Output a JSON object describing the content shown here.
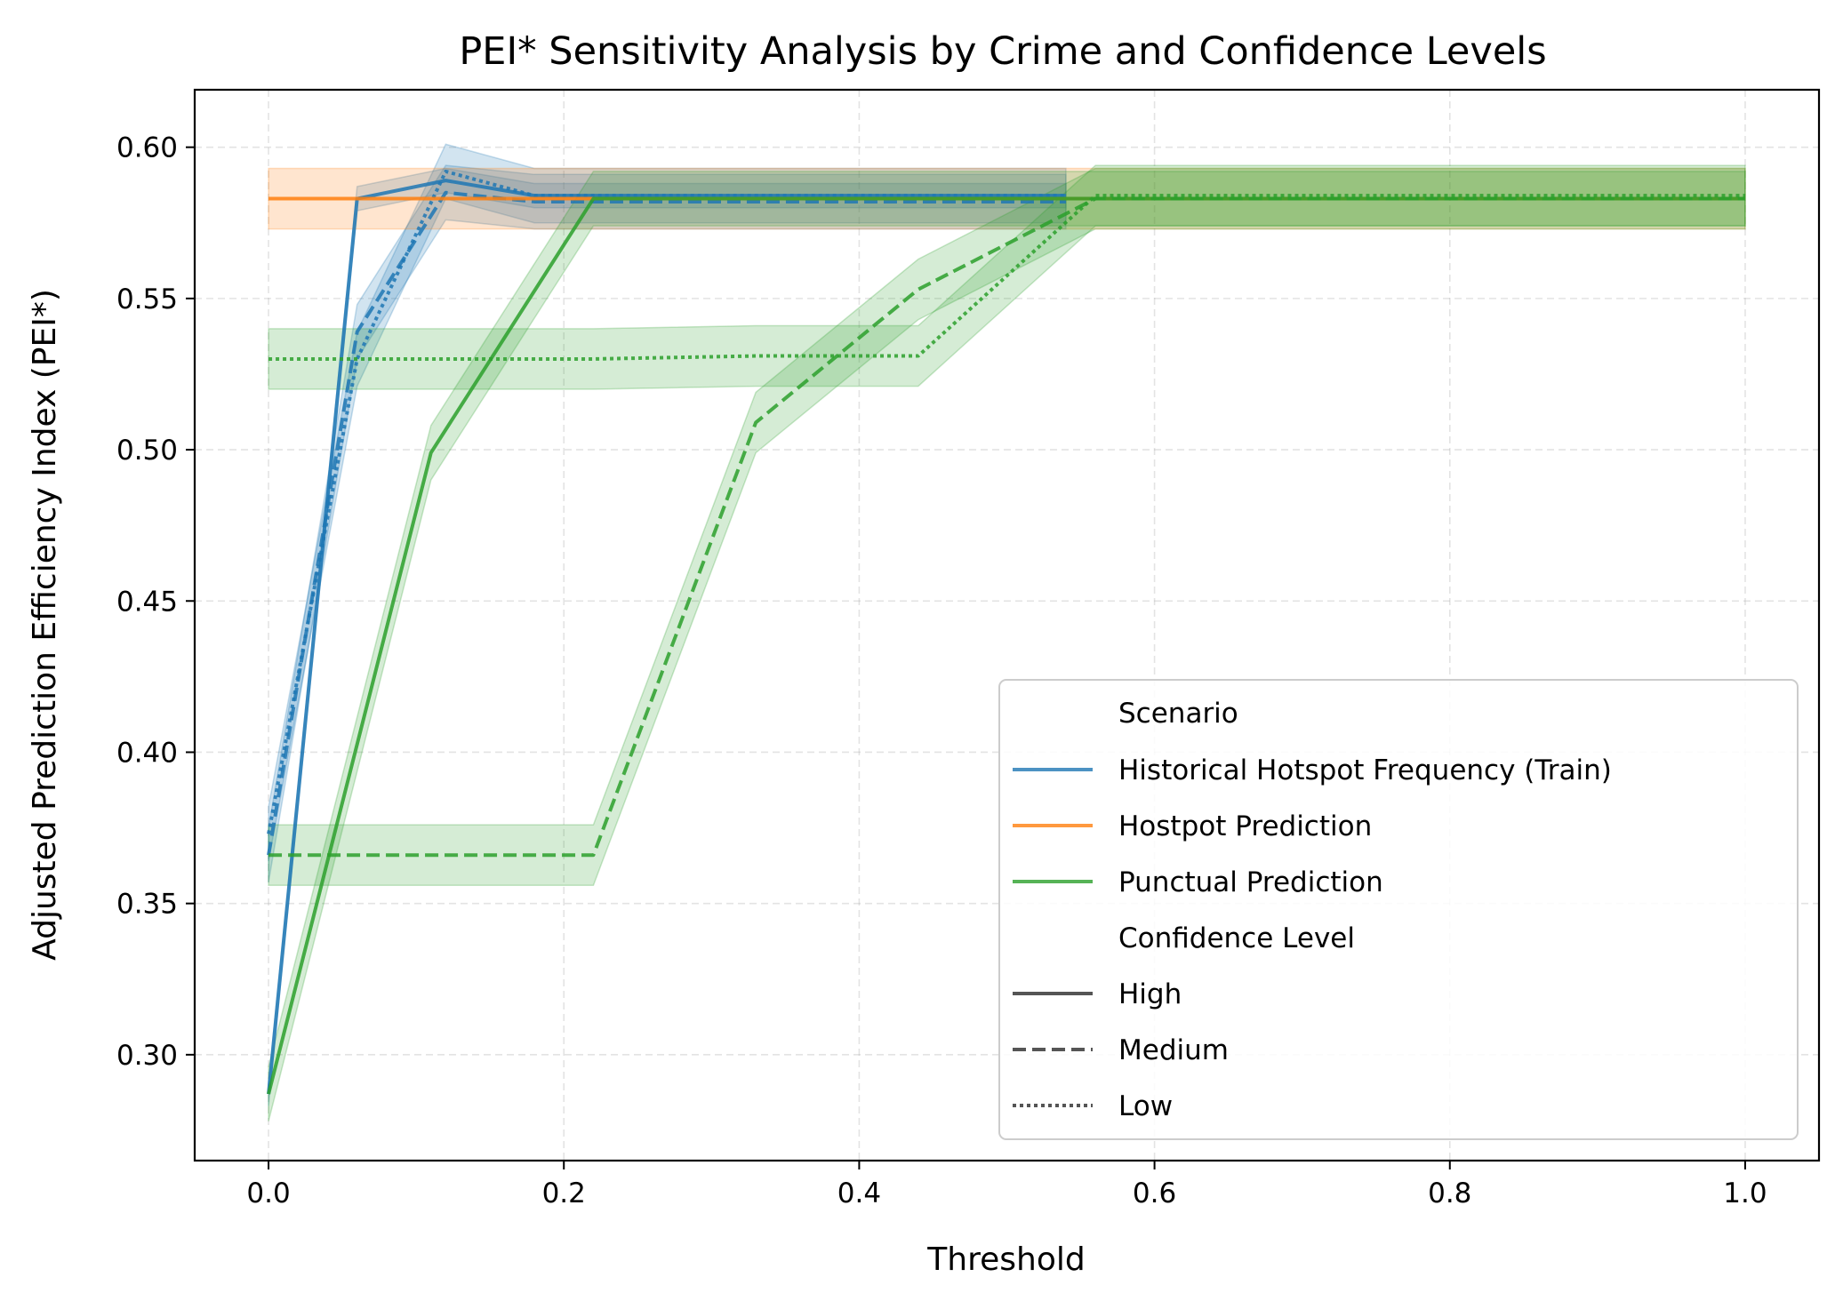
{
  "chart_data": {
    "type": "line",
    "title": "PEI* Sensitivity Analysis by Crime and Confidence Levels",
    "xlabel": "Threshold",
    "ylabel": "Adjusted Prediction Efficiency Index (PEI*)",
    "xlim": [
      -0.05,
      1.05
    ],
    "ylim": [
      0.265,
      0.619
    ],
    "xticks": [
      0.0,
      0.2,
      0.4,
      0.6,
      0.8,
      1.0
    ],
    "xtick_labels": [
      "0.0",
      "0.2",
      "0.4",
      "0.6",
      "0.8",
      "1.0"
    ],
    "yticks": [
      0.3,
      0.35,
      0.4,
      0.45,
      0.5,
      0.55,
      0.6
    ],
    "ytick_labels": [
      "0.30",
      "0.35",
      "0.40",
      "0.45",
      "0.50",
      "0.55",
      "0.60"
    ],
    "grid": true,
    "legend_position": "lower-right",
    "legend": {
      "scenario_title": "Scenario",
      "scenario_entries": [
        {
          "label": "Historical Hotspot Frequency (Train)",
          "color": "#1f77b4"
        },
        {
          "label": "Hostpot Prediction",
          "color": "#ff7f0e"
        },
        {
          "label": "Punctual Prediction",
          "color": "#2ca02c"
        }
      ],
      "confidence_title": "Confidence Level",
      "confidence_entries": [
        {
          "label": "High",
          "style": "solid"
        },
        {
          "label": "Medium",
          "style": "dashed"
        },
        {
          "label": "Low",
          "style": "dotted"
        }
      ]
    },
    "series": [
      {
        "scenario": "Historical Hotspot Frequency (Train)",
        "confidence": "High",
        "color": "#1f77b4",
        "style": "solid",
        "x": [
          0,
          0.06,
          0.12,
          0.18,
          0.54
        ],
        "y": [
          0.287,
          0.583,
          0.589,
          0.584,
          0.584
        ],
        "band": 0.004
      },
      {
        "scenario": "Historical Hotspot Frequency (Train)",
        "confidence": "Medium",
        "color": "#1f77b4",
        "style": "dashed",
        "x": [
          0,
          0.06,
          0.12,
          0.18,
          0.54
        ],
        "y": [
          0.366,
          0.539,
          0.585,
          0.582,
          0.582
        ],
        "band": 0.009
      },
      {
        "scenario": "Historical Hotspot Frequency (Train)",
        "confidence": "Low",
        "color": "#1f77b4",
        "style": "dotted",
        "x": [
          0,
          0.06,
          0.12,
          0.18,
          0.54
        ],
        "y": [
          0.373,
          0.53,
          0.592,
          0.584,
          0.584
        ],
        "band": 0.009
      },
      {
        "scenario": "Hostpot Prediction",
        "confidence": "High",
        "color": "#ff7f0e",
        "style": "solid",
        "x": [
          0,
          1.0
        ],
        "y": [
          0.583,
          0.583
        ],
        "band": 0.01
      },
      {
        "scenario": "Punctual Prediction",
        "confidence": "High",
        "color": "#2ca02c",
        "style": "solid",
        "x": [
          0,
          0.11,
          0.22,
          0.56,
          1.0
        ],
        "y": [
          0.287,
          0.499,
          0.583,
          0.583,
          0.583
        ],
        "band": 0.009
      },
      {
        "scenario": "Punctual Prediction",
        "confidence": "Medium",
        "color": "#2ca02c",
        "style": "dashed",
        "x": [
          0,
          0.22,
          0.33,
          0.44,
          0.56,
          1.0
        ],
        "y": [
          0.366,
          0.366,
          0.509,
          0.553,
          0.583,
          0.583
        ],
        "band": 0.01
      },
      {
        "scenario": "Punctual Prediction",
        "confidence": "Low",
        "color": "#2ca02c",
        "style": "dotted",
        "x": [
          0,
          0.11,
          0.22,
          0.33,
          0.44,
          0.56,
          1.0
        ],
        "y": [
          0.53,
          0.53,
          0.53,
          0.531,
          0.531,
          0.584,
          0.584
        ],
        "band": 0.01
      }
    ]
  }
}
